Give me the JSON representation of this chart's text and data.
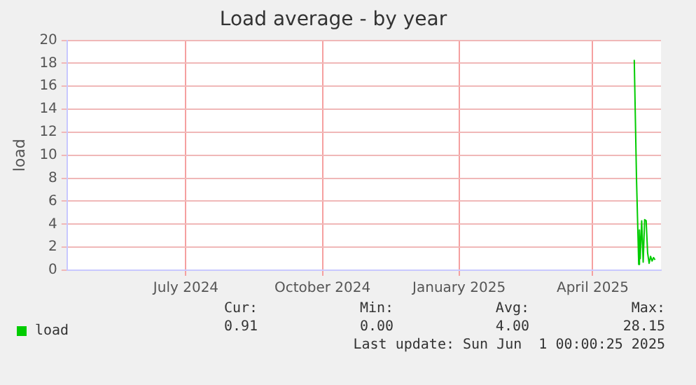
{
  "chart_data": {
    "type": "line",
    "title": "Load average - by year",
    "ylabel": "load",
    "x": [
      "2025-05-14",
      "2025-05-15T12:00",
      "2025-05-17",
      "2025-05-17T12:00",
      "2025-05-18",
      "2025-05-19",
      "2025-05-20",
      "2025-05-21",
      "2025-05-22",
      "2025-05-23",
      "2025-05-24",
      "2025-05-25",
      "2025-05-26",
      "2025-05-27",
      "2025-05-28"
    ],
    "series": [
      {
        "name": "load",
        "color": "#00cc00",
        "values": [
          18.3,
          8,
          0.5,
          3.5,
          1,
          4.3,
          0.7,
          4.4,
          4.3,
          1.5,
          0.6,
          1.2,
          0.8,
          1.1,
          0.9
        ]
      }
    ],
    "xlim": [
      "2024-04-27",
      "2025-06-01"
    ],
    "xticks": [
      {
        "value": "2024-07-16",
        "label": "July 2024"
      },
      {
        "value": "2024-10-16",
        "label": "October 2024"
      },
      {
        "value": "2025-01-16",
        "label": "January 2025"
      },
      {
        "value": "2025-04-16",
        "label": "April 2025"
      }
    ],
    "ylim": [
      0,
      20
    ],
    "yticks": [
      0,
      2,
      4,
      6,
      8,
      10,
      12,
      14,
      16,
      18,
      20
    ],
    "grid": true,
    "legend": "bottom left",
    "marker": "none",
    "line_style": "solid",
    "annotations": [
      "Cur:",
      "Min:",
      "Avg:",
      "Max:",
      "0.91",
      "0.00",
      "4.00",
      "28.15",
      "Last update: Sun Jun  1 00:00:25 2025"
    ]
  }
}
